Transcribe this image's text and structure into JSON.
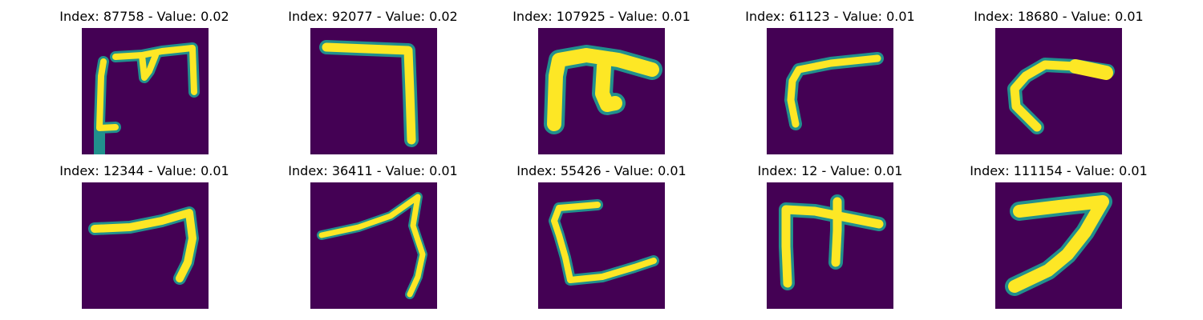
{
  "figure": {
    "colormap": {
      "background": "#440154",
      "edge": "#21908d",
      "mid": "#5ec962",
      "foreground": "#fde725"
    },
    "panels": [
      {
        "title": "Index: 87758 - Value: 0.02",
        "index": 87758,
        "value": 0.02,
        "glyph": "digit-stroke-sketch"
      },
      {
        "title": "Index: 92077 - Value: 0.02",
        "index": 92077,
        "value": 0.02,
        "glyph": "digit-stroke-sketch"
      },
      {
        "title": "Index: 107925 - Value: 0.01",
        "index": 107925,
        "value": 0.01,
        "glyph": "digit-stroke-sketch"
      },
      {
        "title": "Index: 61123 - Value: 0.01",
        "index": 61123,
        "value": 0.01,
        "glyph": "digit-stroke-sketch"
      },
      {
        "title": "Index: 18680 - Value: 0.01",
        "index": 18680,
        "value": 0.01,
        "glyph": "digit-stroke-sketch"
      },
      {
        "title": "Index: 12344 - Value: 0.01",
        "index": 12344,
        "value": 0.01,
        "glyph": "digit-stroke-sketch"
      },
      {
        "title": "Index: 36411 - Value: 0.01",
        "index": 36411,
        "value": 0.01,
        "glyph": "digit-stroke-sketch"
      },
      {
        "title": "Index: 55426 - Value: 0.01",
        "index": 55426,
        "value": 0.01,
        "glyph": "digit-stroke-sketch"
      },
      {
        "title": "Index: 12 - Value: 0.01",
        "index": 12,
        "value": 0.01,
        "glyph": "digit-stroke-sketch"
      },
      {
        "title": "Index: 111154 - Value: 0.01",
        "index": 111154,
        "value": 0.01,
        "glyph": "digit-stroke-sketch"
      }
    ]
  }
}
